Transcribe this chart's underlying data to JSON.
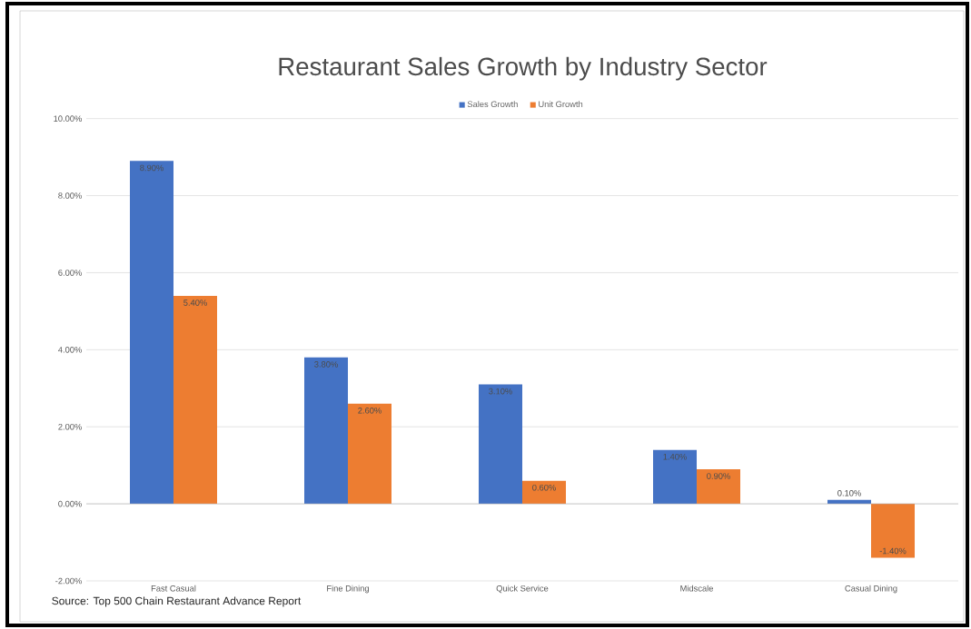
{
  "chart_data": {
    "type": "bar",
    "title": "Restaurant Sales Growth by Industry Sector",
    "categories": [
      "Fast Casual",
      "Fine Dining",
      "Quick Service",
      "Midscale",
      "Casual Dining"
    ],
    "series": [
      {
        "name": "Sales Growth",
        "color": "#4472c4",
        "values": [
          8.9,
          3.8,
          3.1,
          1.4,
          0.1
        ],
        "value_labels": [
          "8.90%",
          "3.80%",
          "3.10%",
          "1.40%",
          "0.10%"
        ]
      },
      {
        "name": "Unit Growth",
        "color": "#ed7d31",
        "values": [
          5.4,
          2.6,
          0.6,
          0.9,
          -1.4
        ],
        "value_labels": [
          "5.40%",
          "2.60%",
          "0.60%",
          "0.90%",
          "-1.40%"
        ]
      }
    ],
    "ylim": [
      -2,
      10
    ],
    "yticks": [
      {
        "value": -2,
        "label": "-2.00%"
      },
      {
        "value": 0,
        "label": "0.00%"
      },
      {
        "value": 2,
        "label": "2.00%"
      },
      {
        "value": 4,
        "label": "4.00%"
      },
      {
        "value": 6,
        "label": "6.00%"
      },
      {
        "value": 8,
        "label": "8.00%"
      },
      {
        "value": 10,
        "label": "10.00%"
      }
    ],
    "grid": "y",
    "legend": "top",
    "annotations": [
      "Source: Top 500 Chain Restaurant Advance Report"
    ]
  }
}
